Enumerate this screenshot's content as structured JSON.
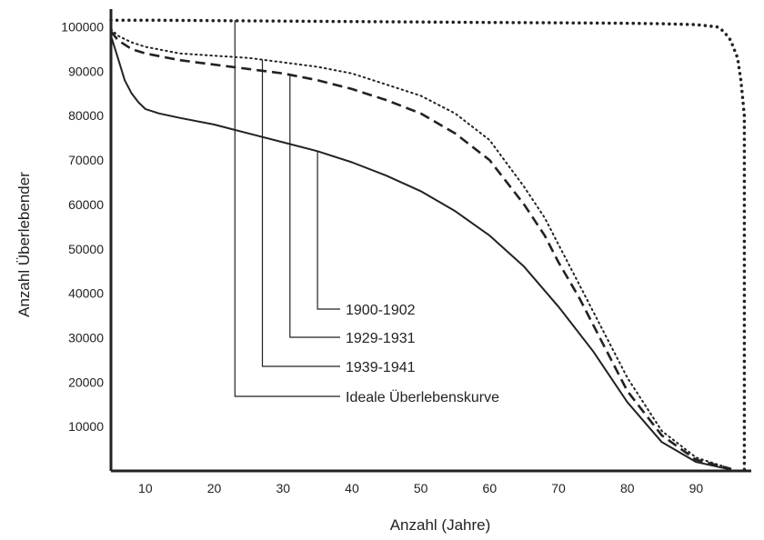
{
  "chart_data": {
    "type": "line",
    "xlabel": "Anzahl (Jahre)",
    "ylabel": "Anzahl Überlebender",
    "xlim": [
      5,
      98
    ],
    "ylim": [
      0,
      104000
    ],
    "x_ticks": [
      10,
      20,
      30,
      40,
      50,
      60,
      70,
      80,
      90
    ],
    "x_tick_labels": [
      "10",
      "20",
      "30",
      "40",
      "50",
      "60",
      "70",
      "80",
      "90"
    ],
    "y_ticks": [
      10000,
      20000,
      30000,
      40000,
      50000,
      60000,
      70000,
      80000,
      90000,
      100000
    ],
    "y_tick_labels": [
      "10000",
      "20000",
      "30000",
      "40000",
      "50000",
      "60000",
      "70000",
      "80000",
      "90000",
      "100000"
    ],
    "grid": false,
    "legend_position": "inside-center, leader lines to curves",
    "series": [
      {
        "name": "1900-1902",
        "style": "solid",
        "x": [
          5,
          6,
          7,
          8,
          9,
          10,
          12,
          15,
          20,
          25,
          30,
          35,
          40,
          45,
          50,
          55,
          60,
          65,
          70,
          75,
          80,
          85,
          90,
          95
        ],
        "y": [
          98000,
          93000,
          88000,
          85000,
          83000,
          81500,
          80500,
          79500,
          78000,
          76000,
          74000,
          72000,
          69500,
          66500,
          63000,
          58500,
          53000,
          46000,
          37000,
          27000,
          15500,
          6500,
          2000,
          300
        ],
        "leader_x": 35
      },
      {
        "name": "1929-1931",
        "style": "dashed",
        "x": [
          5,
          6,
          8,
          10,
          15,
          20,
          25,
          30,
          35,
          40,
          45,
          50,
          55,
          60,
          65,
          68,
          70,
          73,
          75,
          78,
          80,
          85,
          90,
          95
        ],
        "y": [
          99000,
          97000,
          95000,
          94000,
          92500,
          91500,
          90500,
          89500,
          88000,
          86000,
          83500,
          80500,
          76000,
          70000,
          60000,
          53000,
          47000,
          39000,
          33000,
          24000,
          18000,
          8000,
          2500,
          500
        ],
        "leader_x": 31
      },
      {
        "name": "1939-1941",
        "style": "dotted",
        "x": [
          5,
          6,
          8,
          10,
          15,
          20,
          25,
          30,
          35,
          40,
          45,
          50,
          55,
          60,
          65,
          68,
          70,
          73,
          75,
          78,
          80,
          85,
          90,
          95
        ],
        "y": [
          99500,
          98000,
          96500,
          95500,
          94000,
          93500,
          93000,
          92000,
          91000,
          89500,
          87000,
          84500,
          80500,
          74500,
          64000,
          57000,
          51000,
          42000,
          36000,
          27000,
          21000,
          9000,
          3000,
          500
        ],
        "leader_x": 27
      },
      {
        "name": "Ideale Überlebenskurve",
        "style": "heavy-dotted",
        "x": [
          5,
          10,
          20,
          30,
          40,
          50,
          60,
          70,
          80,
          85,
          90,
          93,
          94,
          95,
          96,
          96.5,
          97,
          97,
          97
        ],
        "y": [
          101500,
          101500,
          101400,
          101300,
          101200,
          101100,
          101000,
          100900,
          100800,
          100700,
          100500,
          100000,
          99000,
          97000,
          93000,
          88000,
          80000,
          40000,
          0
        ],
        "leader_x": 23
      }
    ]
  }
}
